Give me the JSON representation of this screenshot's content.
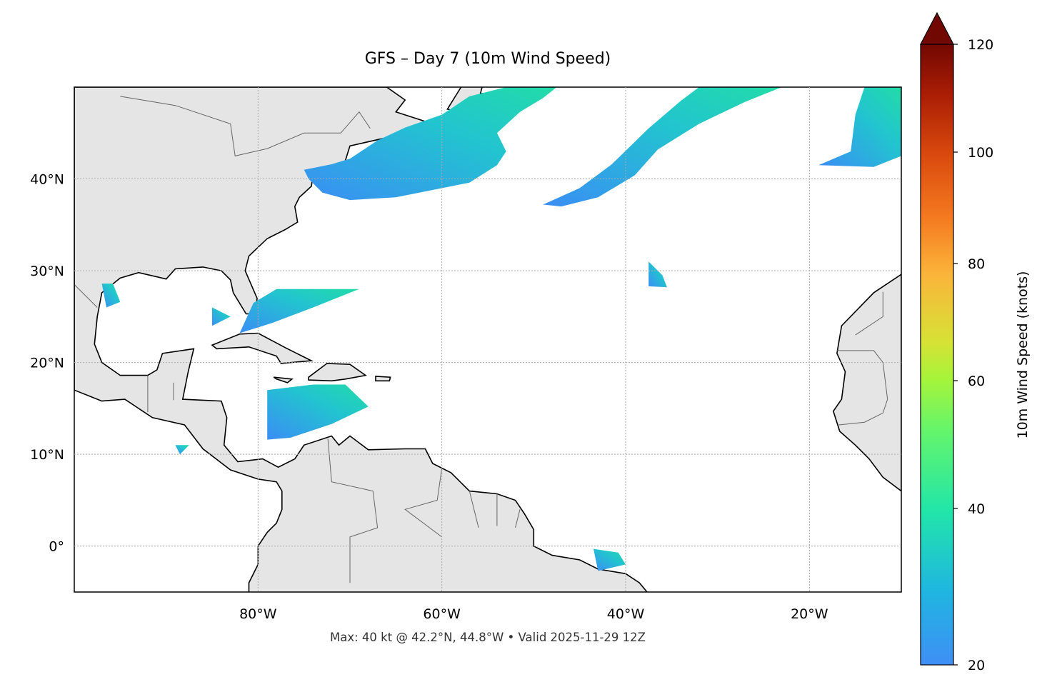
{
  "title": "GFS – Day 7 (10m Wind Speed)",
  "footer": "Max: 40 kt @ 42.2°N, 44.8°W • Valid 2025-11-29 12Z",
  "map": {
    "extent": {
      "lon": [
        -100,
        -10
      ],
      "lat": [
        -5,
        50
      ]
    },
    "lon_ticks": [
      {
        "value": -80,
        "label": "80°W"
      },
      {
        "value": -60,
        "label": "60°W"
      },
      {
        "value": -40,
        "label": "40°W"
      },
      {
        "value": -20,
        "label": "20°W"
      }
    ],
    "lat_ticks": [
      {
        "value": 40,
        "label": "40°N"
      },
      {
        "value": 30,
        "label": "30°N"
      },
      {
        "value": 20,
        "label": "20°N"
      },
      {
        "value": 10,
        "label": "10°N"
      },
      {
        "value": 0,
        "label": "0°"
      }
    ],
    "gridlines": true,
    "land_color": "#e5e5e5",
    "coastline_color": "#000000",
    "border_color": "#666666"
  },
  "colorbar": {
    "label": "10m Wind Speed (knots)",
    "range": [
      20,
      120
    ],
    "extend": "max",
    "colormap": "turbo",
    "ticks": [
      {
        "value": 20,
        "label": "20"
      },
      {
        "value": 40,
        "label": "40"
      },
      {
        "value": 60,
        "label": "60"
      },
      {
        "value": 80,
        "label": "80"
      },
      {
        "value": 100,
        "label": "100"
      },
      {
        "value": 120,
        "label": "120"
      }
    ]
  }
}
